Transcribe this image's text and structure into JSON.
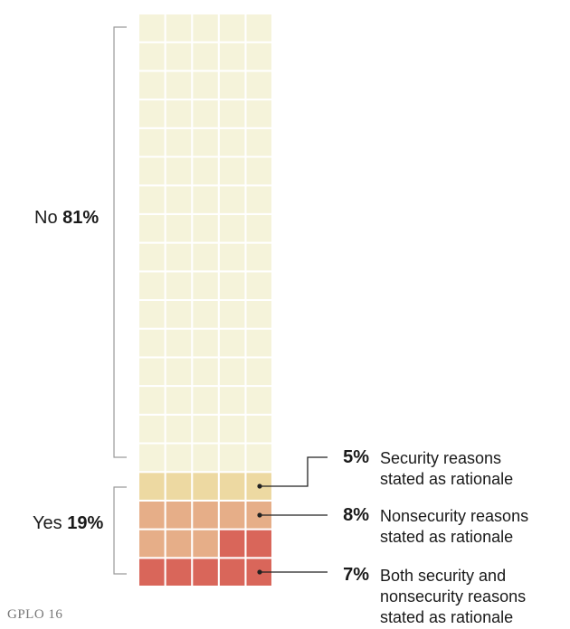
{
  "chart_data": {
    "type": "waffle",
    "grid": {
      "columns": 5,
      "rows": 20,
      "total_cells": 100
    },
    "fill_order": "bottom-to-top, right-to-left within row",
    "segments": [
      {
        "name": "Both security and nonsecurity reasons stated as rationale",
        "value": 7,
        "color": "#d9665a"
      },
      {
        "name": "Nonsecurity reasons stated as rationale",
        "value": 8,
        "color": "#e6ae88"
      },
      {
        "name": "Security reasons stated as rationale",
        "value": 5,
        "color": "#edd9a2"
      },
      {
        "name": "No",
        "value": 81,
        "color": "#f5f3da"
      }
    ],
    "groups": [
      {
        "label": "No",
        "value_label": "81%",
        "value": 81
      },
      {
        "label": "Yes",
        "value_label": "19%",
        "value": 19
      }
    ],
    "callouts": [
      {
        "value_label": "5%",
        "text_lines": [
          "Security reasons",
          "stated as rationale"
        ]
      },
      {
        "value_label": "8%",
        "text_lines": [
          "Nonsecurity reasons",
          "stated as rationale"
        ]
      },
      {
        "value_label": "7%",
        "text_lines": [
          "Both security and",
          "nonsecurity reasons",
          "stated as rationale"
        ]
      }
    ]
  },
  "source": "GPLO 16"
}
